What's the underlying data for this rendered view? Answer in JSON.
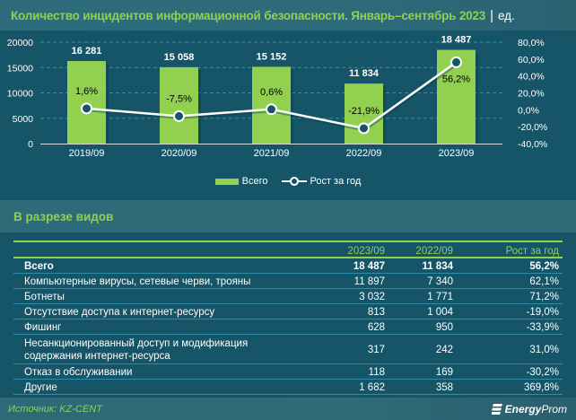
{
  "header": {
    "title": "Количество инцидентов информационной безопасности. Январь–сентябрь 2023",
    "separator": "|",
    "unit": "ед."
  },
  "colors": {
    "background": "#155567",
    "bar": "#92d050",
    "accent_green": "#8fd14f",
    "line": "#ffffff",
    "grid": "#2f8fa8"
  },
  "chart_data": {
    "type": "bar",
    "title": "Количество инцидентов информационной безопасности. Январь–сентябрь 2023 | ед.",
    "categories": [
      "2019/09",
      "2020/09",
      "2021/09",
      "2022/09",
      "2023/09"
    ],
    "series": [
      {
        "name": "Всего",
        "type": "bar",
        "axis": "left",
        "values": [
          16281,
          15058,
          15152,
          11834,
          18487
        ],
        "labels": [
          "16 281",
          "15 058",
          "15 152",
          "11 834",
          "18 487"
        ]
      },
      {
        "name": "Рост за год",
        "type": "line",
        "axis": "right",
        "values": [
          1.6,
          -7.5,
          0.6,
          -21.9,
          56.2
        ],
        "labels": [
          "1,6%",
          "-7,5%",
          "0,6%",
          "-21,9%",
          "56,2%"
        ]
      }
    ],
    "y_left": {
      "min": 0,
      "max": 20000,
      "ticks": [
        "0",
        "5000",
        "10000",
        "15000",
        "20000"
      ],
      "tick_values": [
        0,
        5000,
        10000,
        15000,
        20000
      ]
    },
    "y_right": {
      "min": -40,
      "max": 80,
      "ticks": [
        "-40,0%",
        "-20,0%",
        "0,0%",
        "20,0%",
        "40,0%",
        "60,0%",
        "80,0%"
      ],
      "tick_values": [
        -40,
        -20,
        0,
        20,
        40,
        60,
        80
      ]
    },
    "xlabel": "",
    "ylabel": "",
    "grid": true,
    "legend": {
      "position": "bottom",
      "entries": [
        "Всего",
        "Рост за год"
      ]
    }
  },
  "section": {
    "title": "В разрезе видов"
  },
  "table": {
    "columns": [
      "",
      "2023/09",
      "2022/09",
      "Рост за год"
    ],
    "rows": [
      {
        "name": "Всего",
        "v2023": "18 487",
        "v2022": "11 834",
        "growth": "56,2%"
      },
      {
        "name": "Компьютерные вирусы, сетевые черви, трояны",
        "v2023": "11 897",
        "v2022": "7 340",
        "growth": "62,1%"
      },
      {
        "name": "Ботнеты",
        "v2023": "3 032",
        "v2022": "1 771",
        "growth": "71,2%"
      },
      {
        "name": "Отсутствие доступа к интернет-ресурсу",
        "v2023": "813",
        "v2022": "1 004",
        "growth": "-19,0%"
      },
      {
        "name": "Фишинг",
        "v2023": "628",
        "v2022": "950",
        "growth": "-33,9%"
      },
      {
        "name": "Несанкционированный доступ и модификация содержания интернет-ресурса",
        "v2023": "317",
        "v2022": "242",
        "growth": "31,0%"
      },
      {
        "name": "Отказ в обслуживании",
        "v2023": "118",
        "v2022": "169",
        "growth": "-30,2%"
      },
      {
        "name": "Другие",
        "v2023": "1 682",
        "v2022": "358",
        "growth": "369,8%"
      }
    ]
  },
  "footer": {
    "source": "Источник: KZ-CENT",
    "logo_bold": "Energy",
    "logo_light": "Prom",
    "logo_icon": "energyprom-logo-icon"
  }
}
